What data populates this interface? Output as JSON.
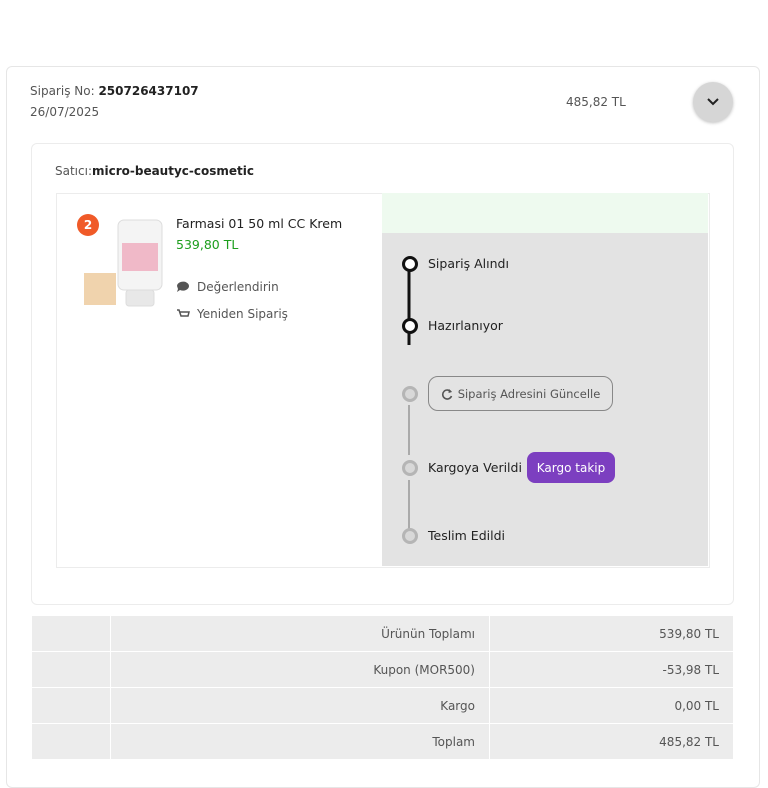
{
  "order": {
    "number_label": "Sipariş No:",
    "number": "250726437107",
    "date": "26/07/2025",
    "total": "485,82 TL",
    "seller_label": "Satıcı:",
    "seller": "micro-beautyc-cosmetic",
    "product": {
      "quantity": "2",
      "name": "Farmasi 01 50 ml CC Krem",
      "price": "539,80 TL",
      "review": "Değerlendirin",
      "reorder": "Yeniden Sipariş"
    },
    "status": {
      "steps": [
        "Sipariş Alındı",
        "Hazırlanıyor",
        "Kargoya Verildi",
        "Teslim Edildi"
      ],
      "update_address": "Sipariş Adresini Güncelle",
      "track": "Kargo takip"
    },
    "summary": {
      "rows": [
        [
          "Ürünün Toplamı",
          "539,80 TL"
        ],
        [
          "Kupon (MOR500)",
          "-53,98 TL"
        ],
        [
          "Kargo",
          "0,00 TL"
        ],
        [
          "Toplam",
          "485,82 TL"
        ]
      ]
    }
  }
}
